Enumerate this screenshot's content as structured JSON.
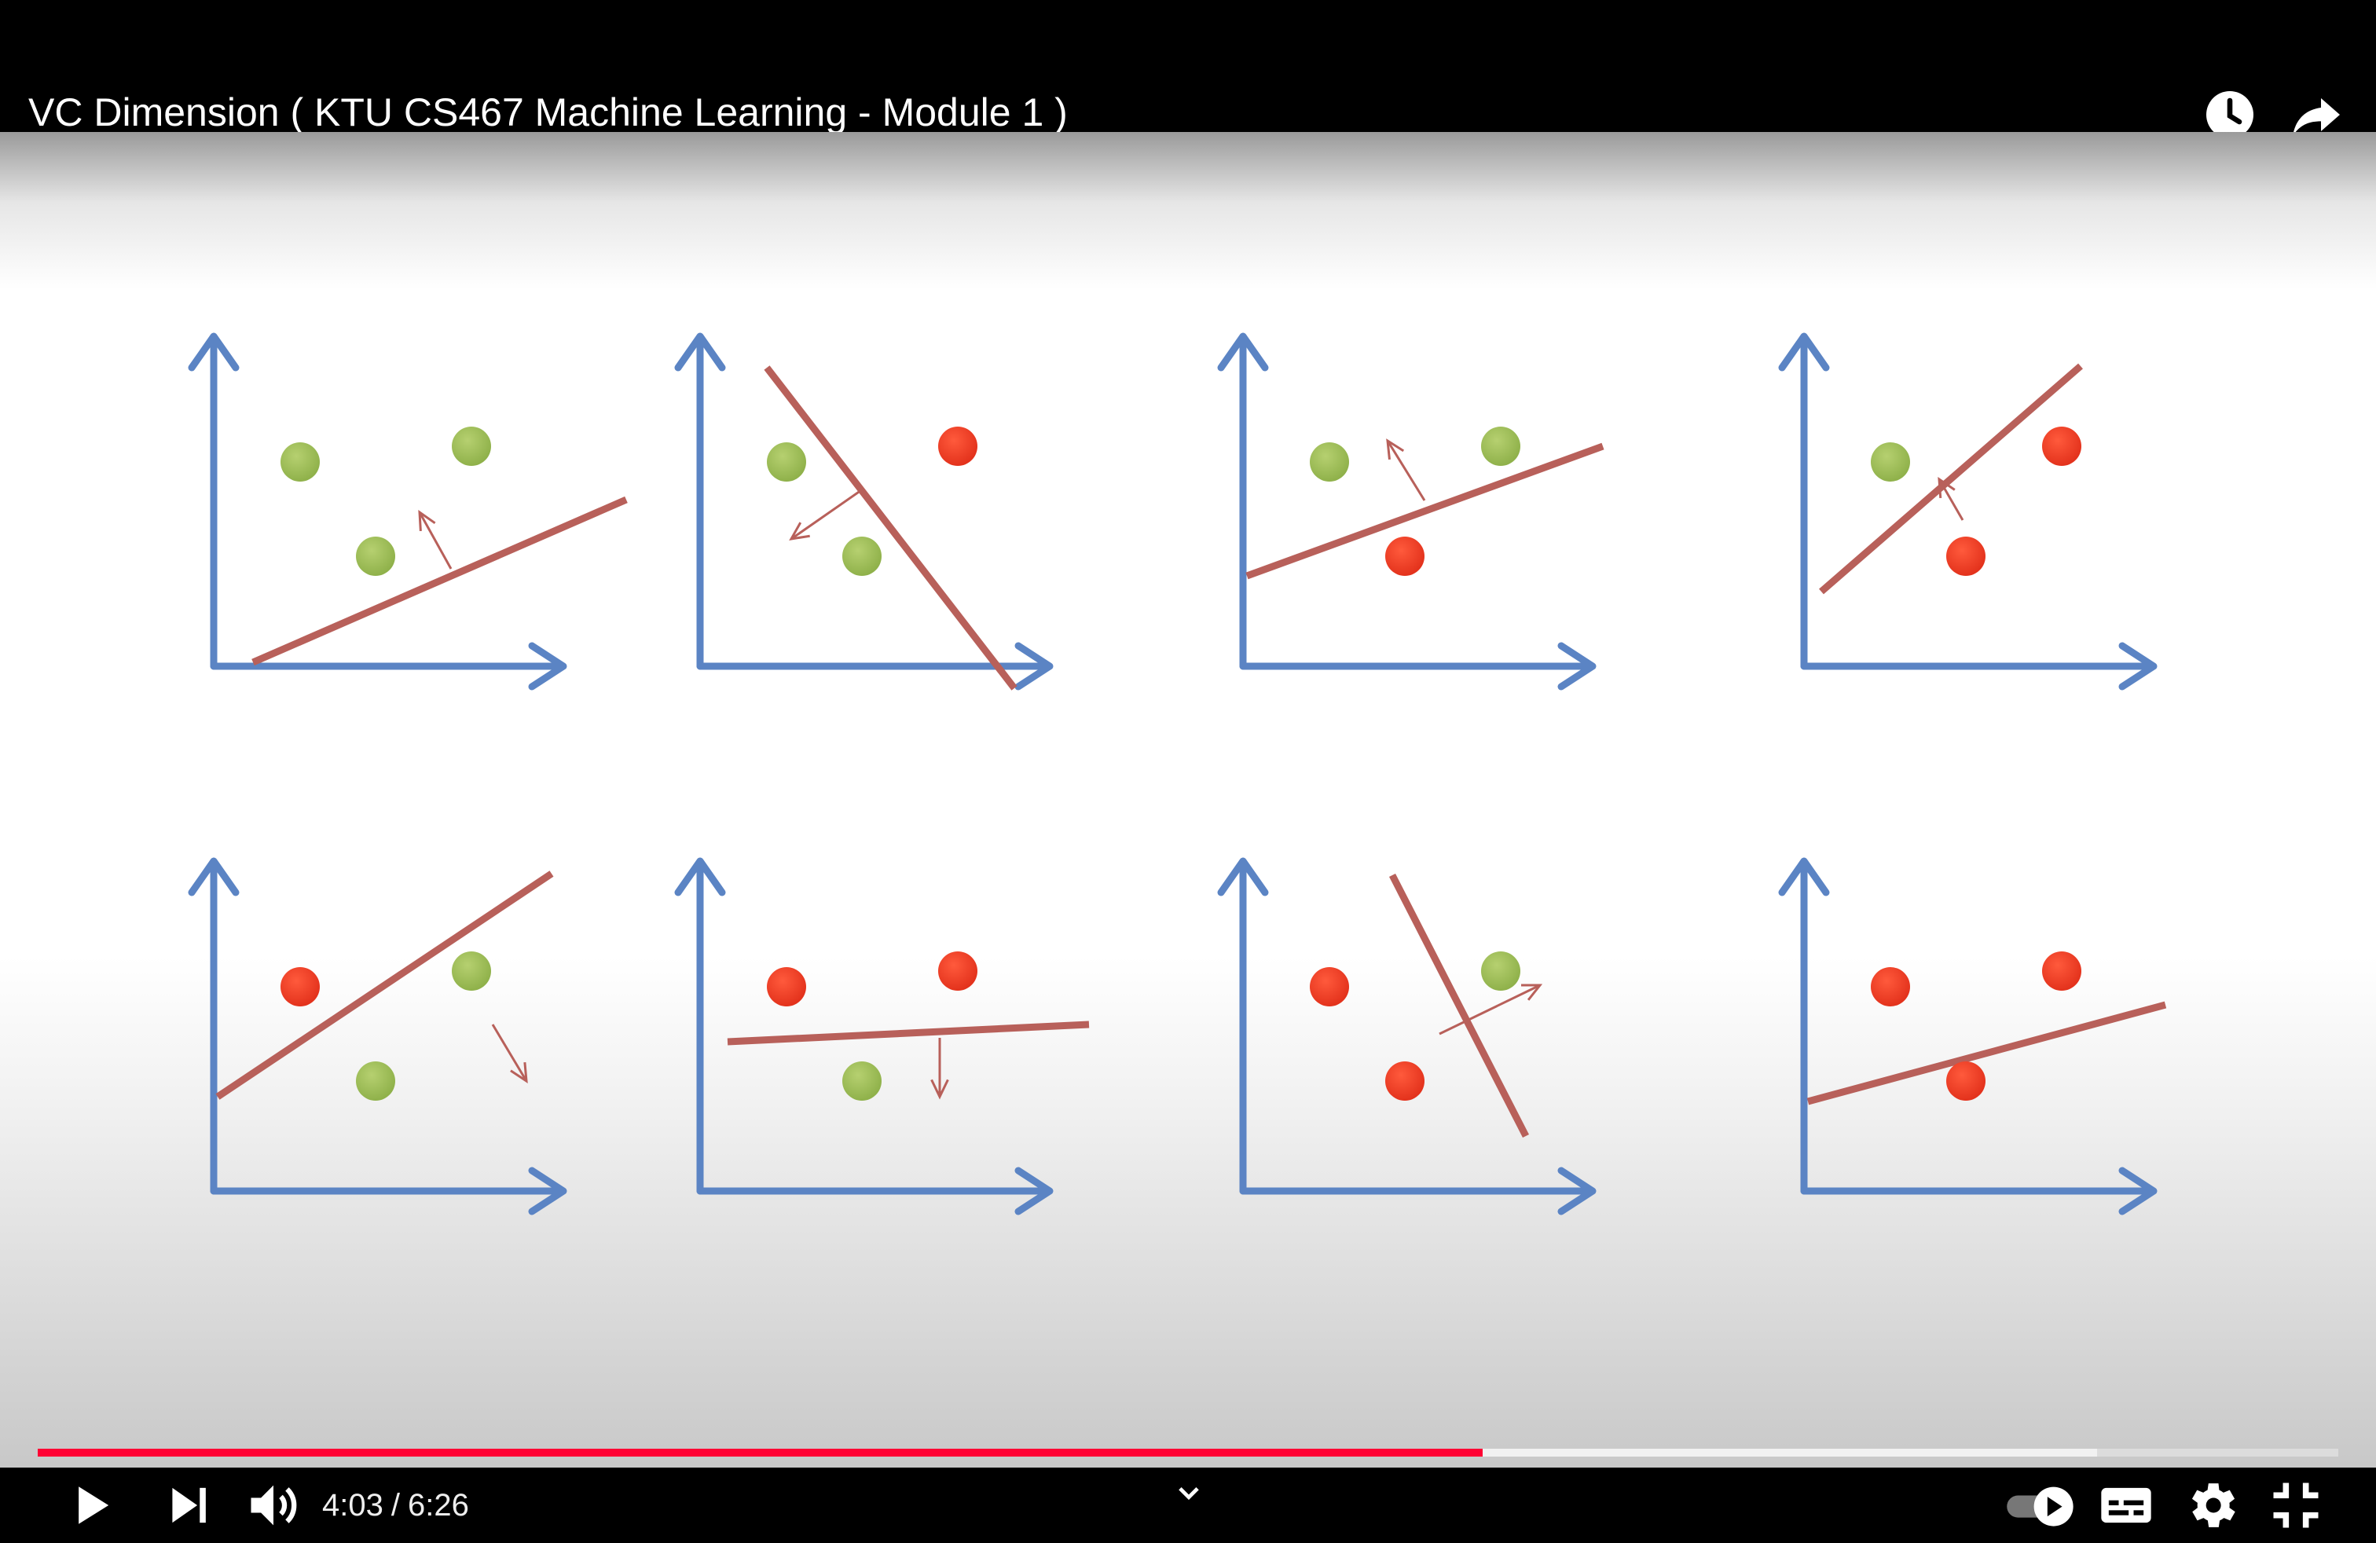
{
  "player": {
    "title": "VC Dimension ( KTU CS467 Machine Learning - Module 1 )",
    "current_time": "4:03",
    "duration": "6:26",
    "time_separator": "/",
    "played_fraction": 0.628,
    "buffered_fraction": 0.895,
    "colors": {
      "progress": "#f03",
      "background": "#000000",
      "text": "#ffffff"
    },
    "top_icons": [
      "watch-later-icon",
      "share-icon"
    ],
    "left_controls": [
      "play-icon",
      "next-icon",
      "volume-icon"
    ],
    "right_controls": [
      "autoplay-toggle",
      "subtitles-icon",
      "settings-gear-icon",
      "exit-fullscreen-icon"
    ]
  },
  "slide": {
    "colors": {
      "axis": "#5b84c4",
      "boundary": "#b8605a",
      "positive": "#8fb14a",
      "negative": "#e3321c"
    },
    "panels": [
      {
        "points": [
          "positive",
          "positive",
          "positive"
        ]
      },
      {
        "points": [
          "positive",
          "negative",
          "positive"
        ]
      },
      {
        "points": [
          "positive",
          "positive",
          "negative"
        ]
      },
      {
        "points": [
          "positive",
          "negative",
          "negative"
        ]
      },
      {
        "points": [
          "negative",
          "positive",
          "positive"
        ]
      },
      {
        "points": [
          "negative",
          "negative",
          "positive"
        ]
      },
      {
        "points": [
          "negative",
          "positive",
          "negative"
        ]
      },
      {
        "points": [
          "negative",
          "negative",
          "negative"
        ]
      }
    ]
  }
}
